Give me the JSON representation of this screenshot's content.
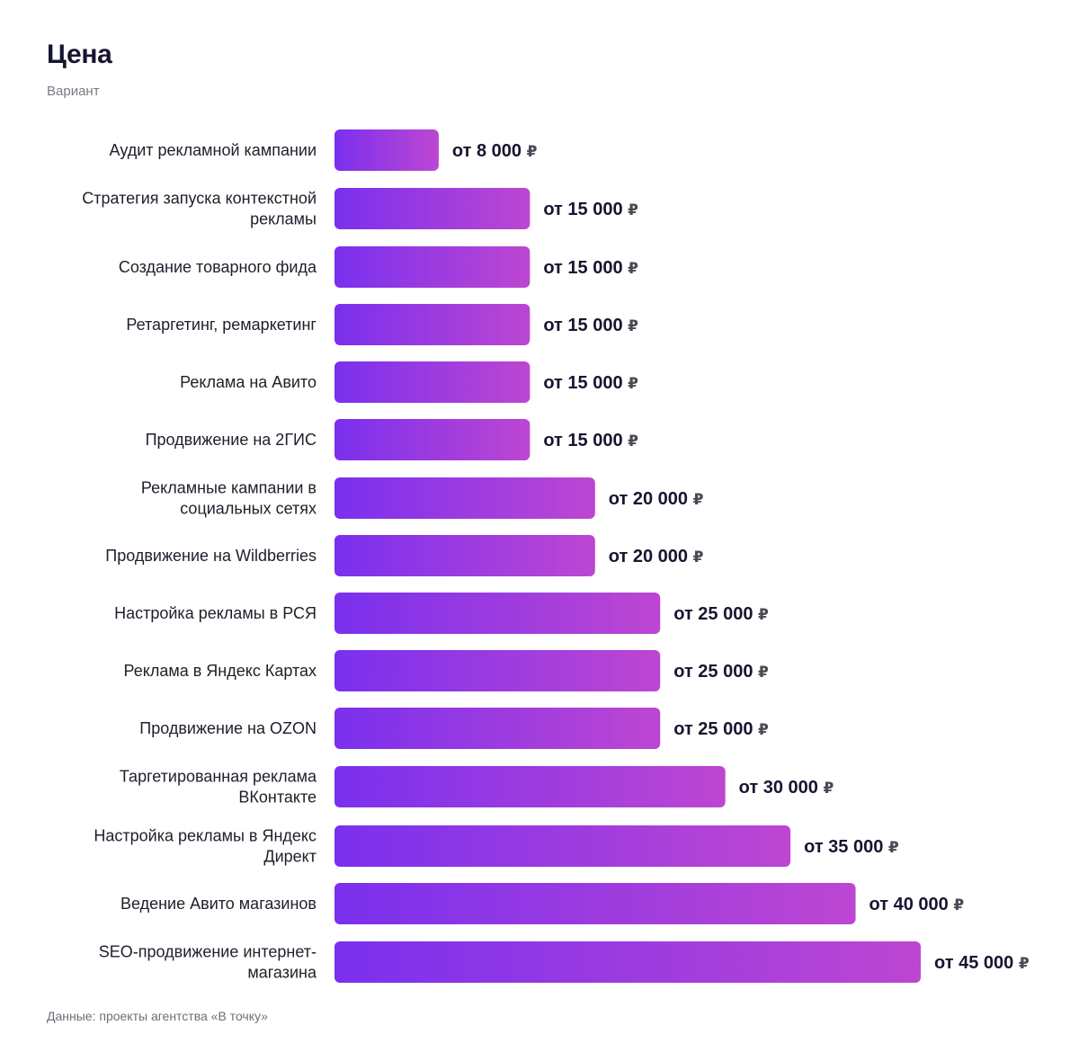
{
  "header": {
    "title": "Цена",
    "subtitle": "Вариант"
  },
  "footer": {
    "source": "Данные: проекты агентства «В точку»"
  },
  "colors": {
    "bar_start": "#7a30ee",
    "bar_end": "#bd46d2",
    "text": "#161630"
  },
  "chart_data": {
    "type": "bar",
    "orientation": "horizontal",
    "title": "Цена",
    "subtitle": "Вариант",
    "value_prefix": "от",
    "currency": "₽",
    "categories": [
      "Аудит рекламной кампании",
      "Стратегия запуска контекстной рекламы",
      "Создание товарного фида",
      "Ретаргетинг, ремаркетинг",
      "Реклама на Авито",
      "Продвижение на 2ГИС",
      "Рекламные кампании в социальных сетях",
      "Продвижение на Wildberries",
      "Настройка рекламы в РСЯ",
      "Реклама в Яндекс Картах",
      "Продвижение на OZON",
      "Таргетированная реклама ВКонтакте",
      "Настройка рекламы в Яндекс Директ",
      "Ведение Авито магазинов",
      "SEO-продвижение интернет-магазина"
    ],
    "category_lines": [
      [
        "Аудит рекламной кампании"
      ],
      [
        "Стратегия запуска контекстной",
        "рекламы"
      ],
      [
        "Создание товарного фида"
      ],
      [
        "Ретаргетинг, ремаркетинг"
      ],
      [
        "Реклама на Авито"
      ],
      [
        "Продвижение на 2ГИС"
      ],
      [
        "Рекламные кампании в",
        "социальных сетях"
      ],
      [
        "Продвижение на Wildberries"
      ],
      [
        "Настройка рекламы в РСЯ"
      ],
      [
        "Реклама в Яндекс Картах"
      ],
      [
        "Продвижение на OZON"
      ],
      [
        "Таргетированная реклама",
        "ВКонтакте"
      ],
      [
        "Настройка рекламы в Яндекс",
        "Директ"
      ],
      [
        "Ведение Авито магазинов"
      ],
      [
        "SEO-продвижение интернет-",
        "магазина"
      ]
    ],
    "values": [
      8000,
      15000,
      15000,
      15000,
      15000,
      15000,
      20000,
      20000,
      25000,
      25000,
      25000,
      30000,
      35000,
      40000,
      45000
    ],
    "value_labels": [
      "от 8 000",
      "от 15 000",
      "от 15 000",
      "от 15 000",
      "от 15 000",
      "от 15 000",
      "от 20 000",
      "от 20 000",
      "от 25 000",
      "от 25 000",
      "от 25 000",
      "от 30 000",
      "от 35 000",
      "от 40 000",
      "от 45 000"
    ],
    "grid": false,
    "legend": "none"
  }
}
